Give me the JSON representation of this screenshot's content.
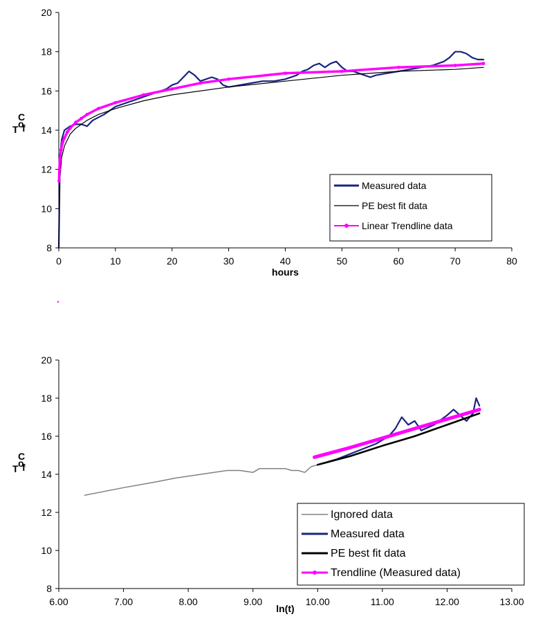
{
  "chart_data": [
    {
      "type": "line",
      "xlabel": "hours",
      "ylabel_main": "T",
      "ylabel_sub": "f",
      "ylabel_unit_sup": "o",
      "ylabel_unit": "C",
      "xlim": [
        0,
        80
      ],
      "ylim": [
        8,
        20
      ],
      "x_ticks": [
        "0",
        "10",
        "20",
        "30",
        "40",
        "50",
        "60",
        "70",
        "80"
      ],
      "y_ticks": [
        "8",
        "10",
        "12",
        "14",
        "16",
        "18",
        "20"
      ],
      "legend_position": "bottom-right",
      "series": [
        {
          "name": "Measured data",
          "color": "#1a237e",
          "x": [
            0,
            0.2,
            0.5,
            1,
            1.5,
            2,
            3,
            4,
            5,
            6,
            8,
            10,
            12,
            14,
            16,
            18,
            19,
            20,
            21,
            22,
            23,
            24,
            25,
            26,
            27,
            28,
            29,
            30,
            32,
            34,
            36,
            38,
            40,
            42,
            43,
            44,
            45,
            46,
            47,
            48,
            49,
            50,
            51,
            52,
            53,
            54,
            55,
            56,
            58,
            60,
            62,
            64,
            66,
            67,
            68,
            69,
            70,
            71,
            72,
            73,
            74,
            75
          ],
          "y": [
            8,
            12.5,
            13.5,
            14.0,
            14.1,
            14.2,
            14.3,
            14.3,
            14.2,
            14.5,
            14.8,
            15.2,
            15.4,
            15.6,
            15.8,
            16.0,
            16.1,
            16.3,
            16.4,
            16.7,
            17.0,
            16.8,
            16.5,
            16.6,
            16.7,
            16.6,
            16.3,
            16.2,
            16.3,
            16.4,
            16.5,
            16.5,
            16.6,
            16.8,
            17.0,
            17.1,
            17.3,
            17.4,
            17.2,
            17.4,
            17.5,
            17.2,
            17.0,
            17.0,
            16.9,
            16.8,
            16.7,
            16.8,
            16.9,
            17.0,
            17.1,
            17.2,
            17.3,
            17.4,
            17.5,
            17.7,
            18.0,
            18.0,
            17.9,
            17.7,
            17.6,
            17.6
          ]
        },
        {
          "name": "PE best fit data",
          "color": "#000000",
          "x": [
            0,
            0.2,
            0.5,
            1,
            2,
            3,
            5,
            7,
            10,
            15,
            20,
            30,
            40,
            50,
            60,
            70,
            75
          ],
          "y": [
            8,
            11.5,
            12.6,
            13.2,
            13.8,
            14.1,
            14.5,
            14.8,
            15.1,
            15.5,
            15.8,
            16.2,
            16.5,
            16.8,
            17.0,
            17.1,
            17.2
          ]
        },
        {
          "name": "Linear Trendline data",
          "color": "#ff00ff",
          "x": [
            0.05,
            0.1,
            0.2,
            0.4,
            0.7,
            1,
            1.5,
            2,
            3,
            4,
            5,
            7,
            10,
            15,
            20,
            25,
            30,
            40,
            50,
            60,
            70,
            75
          ],
          "y": [
            11.4,
            12.0,
            12.5,
            13.0,
            13.4,
            13.6,
            13.9,
            14.1,
            14.4,
            14.6,
            14.8,
            15.1,
            15.4,
            15.8,
            16.1,
            16.4,
            16.6,
            16.9,
            17.0,
            17.2,
            17.3,
            17.4
          ]
        }
      ]
    },
    {
      "type": "line",
      "xlabel": "ln(t)",
      "ylabel_main": "T",
      "ylabel_sub": "f",
      "ylabel_unit_sup": "o",
      "ylabel_unit": "C",
      "xlim": [
        6,
        13
      ],
      "ylim": [
        8,
        20
      ],
      "x_ticks": [
        "6.00",
        "7.00",
        "8.00",
        "9.00",
        "10.00",
        "11.00",
        "12.00",
        "13.00"
      ],
      "y_ticks": [
        "8",
        "10",
        "12",
        "14",
        "16",
        "18",
        "20"
      ],
      "legend_position": "bottom-right",
      "series": [
        {
          "name": "Ignored data",
          "color": "#808080",
          "x": [
            6.4,
            7.0,
            7.5,
            7.8,
            8.2,
            8.6,
            8.8,
            9.0,
            9.1,
            9.3,
            9.5,
            9.6,
            9.7,
            9.8,
            9.9,
            10.0
          ],
          "y": [
            12.9,
            13.3,
            13.6,
            13.8,
            14.0,
            14.2,
            14.2,
            14.1,
            14.3,
            14.3,
            14.3,
            14.2,
            14.2,
            14.1,
            14.4,
            14.5
          ]
        },
        {
          "name": "Measured data",
          "color": "#1a237e",
          "x": [
            10.0,
            10.3,
            10.6,
            10.9,
            11.1,
            11.2,
            11.3,
            11.4,
            11.5,
            11.6,
            11.8,
            12.0,
            12.1,
            12.2,
            12.3,
            12.4,
            12.45,
            12.5
          ],
          "y": [
            14.5,
            14.8,
            15.2,
            15.6,
            16.0,
            16.4,
            17.0,
            16.6,
            16.8,
            16.3,
            16.6,
            17.1,
            17.4,
            17.1,
            16.8,
            17.2,
            18.0,
            17.6
          ]
        },
        {
          "name": "PE best fit data",
          "color": "#000000",
          "x": [
            10.0,
            10.5,
            11.0,
            11.5,
            12.0,
            12.5
          ],
          "y": [
            14.5,
            14.95,
            15.5,
            16.0,
            16.6,
            17.2
          ]
        },
        {
          "name": "Trendline (Measured data)",
          "color": "#ff00ff",
          "x": [
            9.95,
            10.5,
            11.0,
            11.5,
            12.0,
            12.5
          ],
          "y": [
            14.9,
            15.4,
            15.9,
            16.4,
            16.9,
            17.4
          ]
        }
      ]
    }
  ]
}
